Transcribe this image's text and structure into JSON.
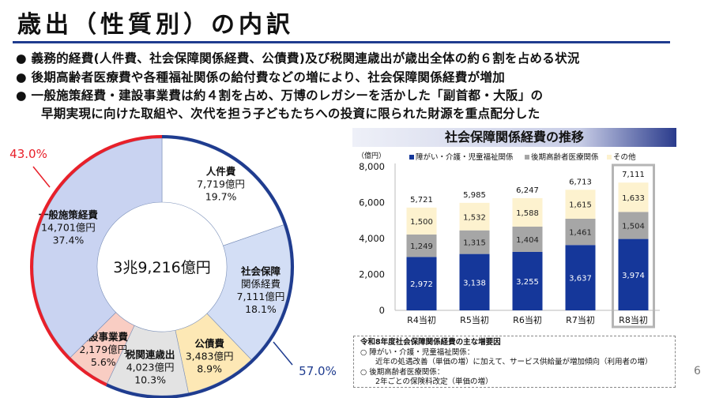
{
  "title": "歳出（性質別）の内訳",
  "bullets": [
    "● 義務的経費(人件費、社会保障関係経費、公債費)及び税関連歳出が歳出全体の約６割を占める状況",
    "● 後期高齢者医療費や各種福祉関係の給付費などの増により、社会保障関係経費が増加",
    "● 一般施策経費・建設事業費は約４割を占め、万博のレガシーを活かした「副首都・大阪」の",
    "早期実現に向けた取組や、次代を担う子どもたちへの投資に限られた財源を重点配分した"
  ],
  "page_number": "6",
  "chart_data": [
    {
      "type": "pie",
      "variant": "donut",
      "center_label": "3兆9,216億円",
      "slices": [
        {
          "label": "人件費",
          "amount": "7,719億円",
          "percent": "19.7%",
          "value": 19.7,
          "color": "#ffffff"
        },
        {
          "label": "社会保障関係経費",
          "label_lines": [
            "社会保障",
            "関係経費"
          ],
          "amount": "7,111億円",
          "percent": "18.1%",
          "value": 18.1,
          "color": "#d3def5"
        },
        {
          "label": "公債費",
          "amount": "3,483億円",
          "percent": "8.9%",
          "value": 8.9,
          "color": "#fde8b5"
        },
        {
          "label": "税関連歳出",
          "amount": "4,023億円",
          "percent": "10.3%",
          "value": 10.3,
          "color": "#e3e3e3"
        },
        {
          "label": "建設事業費",
          "amount": "2,179億円",
          "percent": "5.6%",
          "value": 5.6,
          "color": "#f9cdc3"
        },
        {
          "label": "一般施策経費",
          "amount": "14,701億円",
          "percent": "37.4%",
          "value": 37.4,
          "color": "#c9d3f1"
        }
      ],
      "groups": [
        {
          "label": "57.0%",
          "value": 57.0,
          "color": "#1f3c8f"
        },
        {
          "label": "43.0%",
          "value": 43.0,
          "color": "#e8202a"
        }
      ]
    },
    {
      "type": "bar",
      "stacked": true,
      "title": "社会保障関係経費の推移",
      "ylabel": "（億円）",
      "ylim": [
        0,
        8000
      ],
      "yticks": [
        "0",
        "2,000",
        "4,000",
        "6,000",
        "8,000"
      ],
      "categories": [
        "R4当初",
        "R5当初",
        "R6当初",
        "R7当初",
        "R8当初"
      ],
      "highlight": "R8当初",
      "series": [
        {
          "name": "障がい・介護・児童福祉関係",
          "values": [
            2972,
            3138,
            3255,
            3637,
            3974
          ],
          "labels": [
            "2,972",
            "3,138",
            "3,255",
            "3,637",
            "3,974"
          ],
          "color": "#15379a"
        },
        {
          "name": "後期高齢者医療関係",
          "values": [
            1249,
            1315,
            1404,
            1461,
            1504
          ],
          "labels": [
            "1,249",
            "1,315",
            "1,404",
            "1,461",
            "1,504"
          ],
          "color": "#a6a6a6"
        },
        {
          "name": "その他",
          "values": [
            1500,
            1532,
            1588,
            1615,
            1633
          ],
          "labels": [
            "1,500",
            "1,532",
            "1,588",
            "1,615",
            "1,633"
          ],
          "color": "#fdf2cf"
        }
      ],
      "totals": [
        "5,721",
        "5,985",
        "6,247",
        "6,713",
        "7,111"
      ]
    }
  ],
  "note": {
    "title": "令和8年度社会保障関係経費の主な増要因",
    "lines": [
      "○ 障がい・介護・児童福祉関係：",
      "　　近年の処遇改善（単価の増）に加えて、サービス供給量が増加傾向（利用者の増）",
      "○ 後期高齢者医療関係：",
      "　　2年ごとの保険料改定（単価の増）"
    ]
  }
}
